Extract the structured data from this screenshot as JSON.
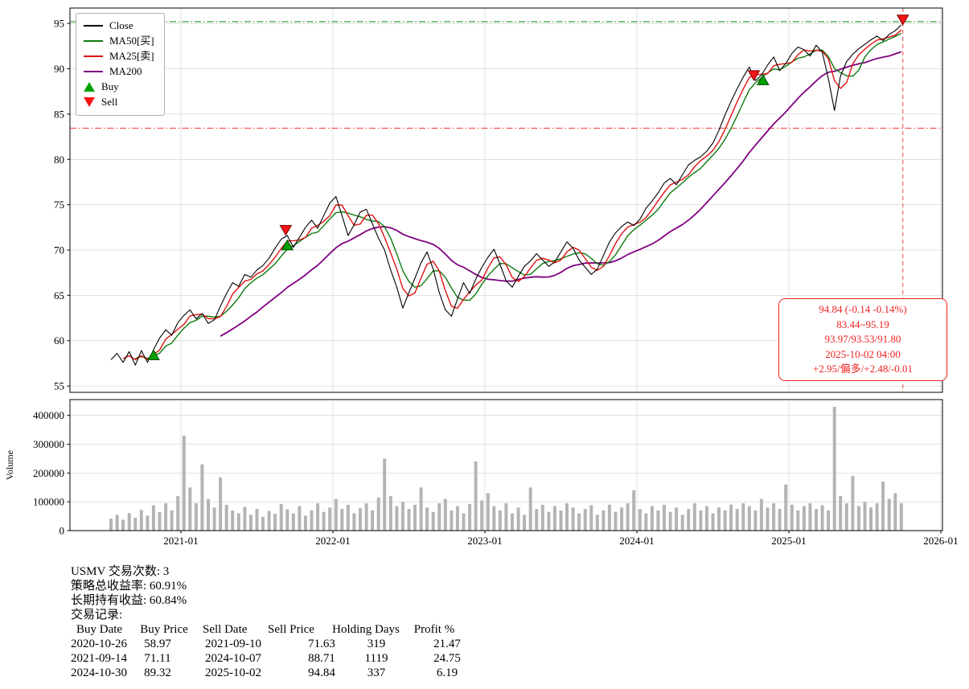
{
  "chart_data": [
    {
      "type": "line",
      "name": "price-panel",
      "x_unit": "decimal-year",
      "x_start": 2020.54,
      "x_step": 0.04,
      "x_ticks": [
        {
          "x": 2021,
          "label": "2021-01"
        },
        {
          "x": 2022,
          "label": "2022-01"
        },
        {
          "x": 2023,
          "label": "2023-01"
        },
        {
          "x": 2024,
          "label": "2024-01"
        },
        {
          "x": 2025,
          "label": "2025-01"
        },
        {
          "x": 2026,
          "label": "2026-01"
        }
      ],
      "y_ticks": [
        55,
        60,
        65,
        70,
        75,
        80,
        85,
        90,
        95
      ],
      "ylim": [
        54.3,
        96.7
      ],
      "series": [
        {
          "name": "Close",
          "color": "#000000",
          "width": 1.1,
          "values": [
            57.9,
            58.6,
            57.6,
            58.8,
            57.3,
            58.9,
            57.6,
            59.0,
            60.3,
            61.2,
            60.6,
            62.0,
            62.8,
            63.4,
            62.4,
            63.0,
            61.9,
            62.3,
            63.8,
            65.2,
            66.4,
            66.0,
            67.3,
            67.0,
            67.8,
            68.3,
            69.1,
            70.2,
            71.2,
            71.6,
            70.3,
            71.4,
            72.5,
            73.3,
            72.4,
            73.8,
            75.2,
            75.9,
            73.8,
            71.6,
            72.8,
            74.2,
            74.5,
            72.9,
            71.3,
            70.0,
            67.8,
            65.9,
            63.6,
            65.3,
            66.9,
            68.6,
            69.8,
            67.9,
            65.3,
            63.4,
            62.7,
            64.6,
            66.4,
            65.2,
            66.8,
            68.1,
            69.2,
            70.1,
            68.4,
            66.6,
            65.9,
            67.1,
            68.2,
            68.8,
            69.6,
            68.9,
            68.2,
            68.7,
            69.8,
            70.9,
            70.2,
            68.9,
            68.1,
            67.3,
            67.9,
            69.4,
            70.9,
            71.9,
            72.6,
            73.1,
            72.7,
            73.4,
            74.6,
            75.4,
            76.3,
            77.4,
            77.9,
            77.2,
            78.3,
            79.4,
            79.9,
            80.3,
            80.9,
            81.8,
            83.2,
            84.9,
            86.4,
            87.8,
            89.1,
            90.2,
            88.7,
            89.3,
            90.4,
            91.3,
            89.8,
            90.6,
            91.7,
            92.4,
            92.1,
            91.4,
            92.6,
            91.8,
            88.9,
            85.4,
            89.2,
            90.8,
            91.6,
            92.2,
            92.7,
            93.2,
            93.6,
            93.1,
            93.8,
            94.2,
            94.84
          ]
        },
        {
          "name": "MA50[买]",
          "color": "#0c7a0c",
          "width": 1.4,
          "derived": "sma_of_close",
          "window": 5,
          "last_value": 93.53
        },
        {
          "name": "MA25[卖]",
          "color": "#e11212",
          "width": 1.4,
          "derived": "sma_of_close",
          "window": 3,
          "last_value": 93.97
        },
        {
          "name": "MA200",
          "color": "#800080",
          "width": 1.8,
          "derived": "sma_of_close",
          "window": 19,
          "last_value": 91.8
        }
      ],
      "ref_lines": {
        "upper": {
          "y": 95.19,
          "color": "#3aa53a",
          "style": "dashdot"
        },
        "lower": {
          "y": 83.44,
          "color": "#f55555",
          "style": "dashdot"
        },
        "vline": {
          "x": 2025.75,
          "color": "#f56666",
          "style": "dashed"
        }
      },
      "markers": {
        "buy": {
          "color": "#00a000",
          "edge": "#004d00",
          "points": [
            {
              "x": 2020.82,
              "price": 58.97,
              "date": "2020-10-26"
            },
            {
              "x": 2021.7,
              "price": 71.11,
              "date": "2021-09-14"
            },
            {
              "x": 2024.83,
              "price": 89.32,
              "date": "2024-10-30"
            }
          ]
        },
        "sell": {
          "color": "#f51515",
          "edge": "#7a0000",
          "points": [
            {
              "x": 2021.69,
              "price": 71.63,
              "date": "2021-09-10"
            },
            {
              "x": 2024.77,
              "price": 88.71,
              "date": "2024-10-07"
            },
            {
              "x": 2025.75,
              "price": 94.84,
              "date": "2025-10-02"
            }
          ]
        }
      }
    },
    {
      "type": "bar",
      "name": "volume-panel",
      "ylabel": "Volume",
      "bar_color": "#b4b4b4",
      "x_start": 2020.54,
      "x_step": 0.04,
      "ylim": [
        0,
        455000
      ],
      "y_ticks": [
        {
          "v": 0,
          "label": "0"
        },
        {
          "v": 100000,
          "label": "100000"
        },
        {
          "v": 200000,
          "label": "200000"
        },
        {
          "v": 300000,
          "label": "300000"
        },
        {
          "v": 400000,
          "label": "400000"
        }
      ],
      "values": [
        42000,
        55000,
        38000,
        61000,
        45000,
        72000,
        52000,
        88000,
        64000,
        95000,
        70000,
        120000,
        330000,
        150000,
        95000,
        230000,
        110000,
        80000,
        185000,
        90000,
        70000,
        60000,
        82000,
        55000,
        75000,
        48000,
        68000,
        58000,
        92000,
        74000,
        60000,
        85000,
        52000,
        70000,
        95000,
        65000,
        80000,
        110000,
        75000,
        90000,
        60000,
        78000,
        95000,
        70000,
        115000,
        250000,
        120000,
        85000,
        100000,
        75000,
        90000,
        150000,
        80000,
        65000,
        95000,
        110000,
        70000,
        85000,
        60000,
        92000,
        240000,
        105000,
        130000,
        85000,
        70000,
        95000,
        60000,
        80000,
        55000,
        150000,
        75000,
        90000,
        65000,
        85000,
        70000,
        95000,
        80000,
        60000,
        75000,
        88000,
        55000,
        70000,
        90000,
        65000,
        80000,
        95000,
        140000,
        75000,
        60000,
        85000,
        70000,
        90000,
        65000,
        80000,
        55000,
        75000,
        95000,
        70000,
        85000,
        60000,
        80000,
        70000,
        90000,
        75000,
        95000,
        85000,
        70000,
        110000,
        80000,
        95000,
        75000,
        160000,
        90000,
        70000,
        85000,
        95000,
        75000,
        88000,
        70000,
        430000,
        120000,
        95000,
        190000,
        85000,
        100000,
        80000,
        95000,
        170000,
        110000,
        130000,
        95000
      ]
    }
  ],
  "legend": {
    "entries": [
      {
        "label": "Close",
        "swatch": "line",
        "color": "#000000"
      },
      {
        "label": "MA50[买]",
        "swatch": "line",
        "color": "#0c7a0c"
      },
      {
        "label": "MA25[卖]",
        "swatch": "line",
        "color": "#e11212"
      },
      {
        "label": "MA200",
        "swatch": "line",
        "color": "#800080"
      },
      {
        "label": "Buy",
        "swatch": "triangle-up",
        "color": "#00a000"
      },
      {
        "label": "Sell",
        "swatch": "triangle-down",
        "color": "#f51515"
      }
    ]
  },
  "annotation": {
    "color": "#ee2222",
    "lines": [
      "94.84 (-0.14 -0.14%)",
      "83.44~95.19",
      "93.97/93.53/91.80",
      "2025-10-02 04:00",
      "+2.95/偏多/+2.48/-0.01"
    ]
  },
  "stats": {
    "lines": [
      "USMV 交易次数: 3",
      "策略总收益率: 60.91%",
      "长期持有收益: 60.84%",
      "交易记录:"
    ]
  },
  "trades": {
    "headers": [
      "Buy Date",
      "Buy Price",
      "Sell Date",
      "Sell Price",
      "Holding Days",
      "Profit %"
    ],
    "rows": [
      [
        "2020-10-26",
        "58.97",
        "2021-09-10",
        "71.63",
        "319",
        "21.47"
      ],
      [
        "2021-09-14",
        "71.11",
        "2024-10-07",
        "88.71",
        "1119",
        "24.75"
      ],
      [
        "2024-10-30",
        "89.32",
        "2025-10-02",
        "94.84",
        "337",
        "6.19"
      ]
    ]
  }
}
